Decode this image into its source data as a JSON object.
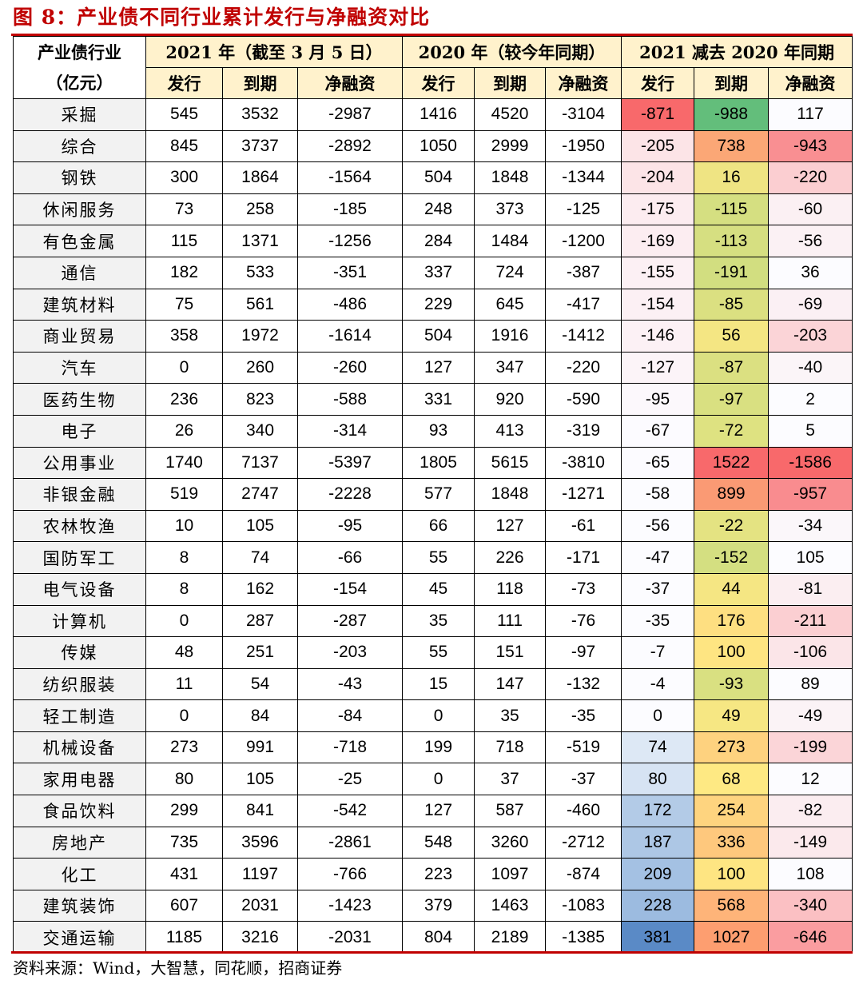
{
  "figure": {
    "title": "图 8：产业债不同行业累计发行与净融资对比",
    "source": "资料来源：Wind，大智慧，同花顺，招商证券"
  },
  "table": {
    "corner_line1": "产业债行业",
    "corner_line2": "（亿元）",
    "groups": [
      "2021 年（截至 3 月 5 日）",
      "2020 年（较今年同期）",
      "2021 减去 2020 年同期"
    ],
    "subheaders": [
      "发行",
      "到期",
      "净融资",
      "发行",
      "到期",
      "净融资",
      "发行",
      "到期",
      "净融资"
    ],
    "rows": [
      [
        "采掘",
        "545",
        "3532",
        "-2987",
        "1416",
        "4520",
        "-3104",
        "-871",
        "-988",
        "117"
      ],
      [
        "综合",
        "845",
        "3737",
        "-2892",
        "1050",
        "2999",
        "-1950",
        "-205",
        "738",
        "-943"
      ],
      [
        "钢铁",
        "300",
        "1864",
        "-1564",
        "504",
        "1848",
        "-1344",
        "-204",
        "16",
        "-220"
      ],
      [
        "休闲服务",
        "73",
        "258",
        "-185",
        "248",
        "373",
        "-125",
        "-175",
        "-115",
        "-60"
      ],
      [
        "有色金属",
        "115",
        "1371",
        "-1256",
        "284",
        "1484",
        "-1200",
        "-169",
        "-113",
        "-56"
      ],
      [
        "通信",
        "182",
        "533",
        "-351",
        "337",
        "724",
        "-387",
        "-155",
        "-191",
        "36"
      ],
      [
        "建筑材料",
        "75",
        "561",
        "-486",
        "229",
        "645",
        "-417",
        "-154",
        "-85",
        "-69"
      ],
      [
        "商业贸易",
        "358",
        "1972",
        "-1614",
        "504",
        "1916",
        "-1412",
        "-146",
        "56",
        "-203"
      ],
      [
        "汽车",
        "0",
        "260",
        "-260",
        "127",
        "347",
        "-220",
        "-127",
        "-87",
        "-40"
      ],
      [
        "医药生物",
        "236",
        "823",
        "-588",
        "331",
        "920",
        "-590",
        "-95",
        "-97",
        "2"
      ],
      [
        "电子",
        "26",
        "340",
        "-314",
        "93",
        "413",
        "-319",
        "-67",
        "-72",
        "5"
      ],
      [
        "公用事业",
        "1740",
        "7137",
        "-5397",
        "1805",
        "5615",
        "-3810",
        "-65",
        "1522",
        "-1586"
      ],
      [
        "非银金融",
        "519",
        "2747",
        "-2228",
        "577",
        "1848",
        "-1271",
        "-58",
        "899",
        "-957"
      ],
      [
        "农林牧渔",
        "10",
        "105",
        "-95",
        "66",
        "127",
        "-61",
        "-56",
        "-22",
        "-34"
      ],
      [
        "国防军工",
        "8",
        "74",
        "-66",
        "55",
        "226",
        "-171",
        "-47",
        "-152",
        "105"
      ],
      [
        "电气设备",
        "8",
        "162",
        "-154",
        "45",
        "118",
        "-73",
        "-37",
        "44",
        "-81"
      ],
      [
        "计算机",
        "0",
        "287",
        "-287",
        "35",
        "111",
        "-76",
        "-35",
        "176",
        "-211"
      ],
      [
        "传媒",
        "48",
        "251",
        "-203",
        "55",
        "151",
        "-97",
        "-7",
        "100",
        "-106"
      ],
      [
        "纺织服装",
        "11",
        "54",
        "-43",
        "15",
        "147",
        "-132",
        "-4",
        "-93",
        "89"
      ],
      [
        "轻工制造",
        "0",
        "84",
        "-84",
        "0",
        "35",
        "-35",
        "0",
        "49",
        "-49"
      ],
      [
        "机械设备",
        "273",
        "991",
        "-718",
        "199",
        "718",
        "-519",
        "74",
        "273",
        "-199"
      ],
      [
        "家用电器",
        "80",
        "105",
        "-25",
        "0",
        "37",
        "-37",
        "80",
        "68",
        "12"
      ],
      [
        "食品饮料",
        "299",
        "841",
        "-542",
        "127",
        "587",
        "-460",
        "172",
        "254",
        "-82"
      ],
      [
        "房地产",
        "735",
        "3596",
        "-2861",
        "548",
        "3260",
        "-2712",
        "187",
        "336",
        "-149"
      ],
      [
        "化工",
        "431",
        "1197",
        "-766",
        "223",
        "1097",
        "-874",
        "209",
        "100",
        "108"
      ],
      [
        "建筑装饰",
        "607",
        "2031",
        "-1423",
        "379",
        "1463",
        "-1083",
        "228",
        "568",
        "-340"
      ],
      [
        "交通运输",
        "1185",
        "3216",
        "-2031",
        "804",
        "2189",
        "-1385",
        "381",
        "1027",
        "-646"
      ]
    ],
    "heat_colors": [
      [
        "#f8696b",
        "#63be7b",
        "#fcfcff"
      ],
      [
        "#fce4e7",
        "#fba776",
        "#f98f92"
      ],
      [
        "#fce4e7",
        "#efe483",
        "#fbced1"
      ],
      [
        "#fcecf0",
        "#d5df81",
        "#fbf0f3"
      ],
      [
        "#fcedf1",
        "#d6df81",
        "#fbf1f4"
      ],
      [
        "#fcf0f4",
        "#d2de80",
        "#fcfcff"
      ],
      [
        "#fcf0f4",
        "#dbe081",
        "#fbf0f4"
      ],
      [
        "#fcf1f5",
        "#f4e683",
        "#fbd4d7"
      ],
      [
        "#fcf4f8",
        "#dbe081",
        "#fbf5f8"
      ],
      [
        "#fcf8fc",
        "#d9e081",
        "#fcfcff"
      ],
      [
        "#fcfbff",
        "#dee281",
        "#fcfcff"
      ],
      [
        "#fcfbff",
        "#f8696b",
        "#f8696b"
      ],
      [
        "#fcfcff",
        "#fa9a74",
        "#f98c8f"
      ],
      [
        "#fcfcff",
        "#e4e382",
        "#fbf7fa"
      ],
      [
        "#fcfcff",
        "#d4df81",
        "#fcfcff"
      ],
      [
        "#fcfcff",
        "#f5e683",
        "#fbeef1"
      ],
      [
        "#fcfcff",
        "#fedf81",
        "#fbcfd2"
      ],
      [
        "#fcfcff",
        "#fee582",
        "#fbe5e8"
      ],
      [
        "#fcfcff",
        "#d9e081",
        "#fcfcff"
      ],
      [
        "#fcfcff",
        "#f6e783",
        "#fbf3f6"
      ],
      [
        "#dde8f5",
        "#fed27f",
        "#fbd5d8"
      ],
      [
        "#d6e3f3",
        "#fee983",
        "#fcfcff"
      ],
      [
        "#b3cbe7",
        "#fed47f",
        "#fbedf0"
      ],
      [
        "#adc7e5",
        "#fec87d",
        "#fbe9ec"
      ],
      [
        "#a4c1e3",
        "#fee582",
        "#fcfcff"
      ],
      [
        "#9cbbe0",
        "#feb479",
        "#fbc0c3"
      ],
      [
        "#5a8ac6",
        "#fd9e70",
        "#fa9da0"
      ]
    ]
  }
}
